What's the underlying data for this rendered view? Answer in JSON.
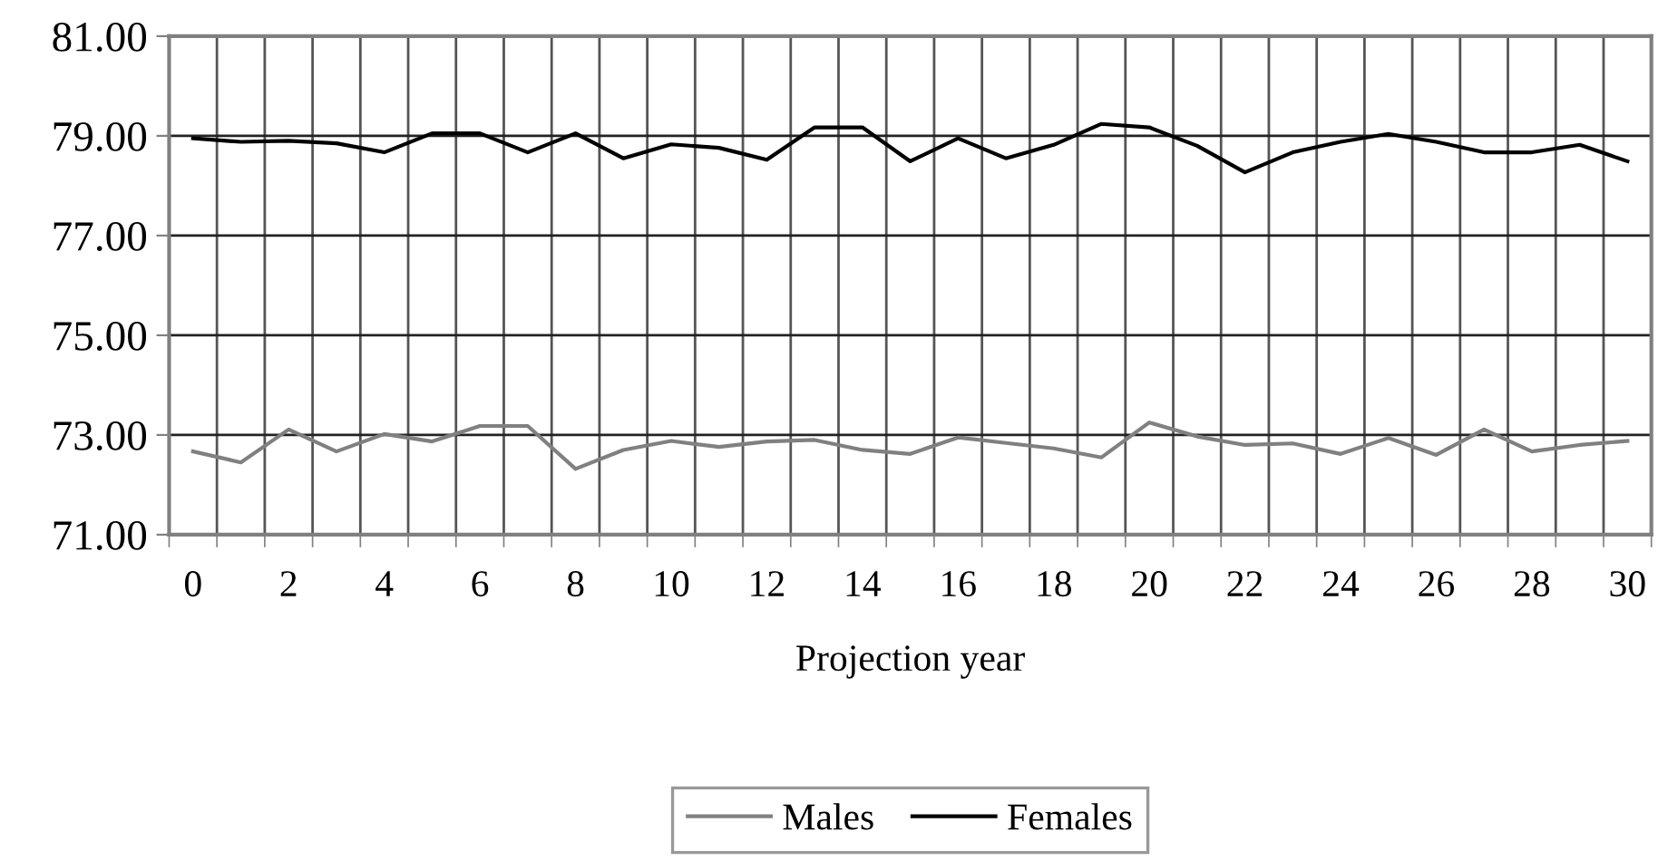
{
  "chart_data": {
    "type": "line",
    "xlabel": "Projection year",
    "categories": [
      "0",
      null,
      "2",
      null,
      "4",
      null,
      "6",
      null,
      "8",
      null,
      "10",
      null,
      "12",
      null,
      "14",
      null,
      "16",
      null,
      "18",
      null,
      "20",
      null,
      "22",
      null,
      "24",
      null,
      "26",
      null,
      "28",
      null,
      "30"
    ],
    "series": [
      {
        "name": "Males",
        "color": "#808080",
        "values": [
          72.67,
          72.45,
          73.11,
          72.67,
          73.02,
          72.87,
          73.18,
          73.18,
          72.32,
          72.7,
          72.88,
          72.76,
          72.87,
          72.9,
          72.7,
          72.62,
          72.95,
          72.84,
          72.73,
          72.55,
          73.25,
          72.97,
          72.8,
          72.83,
          72.62,
          72.94,
          72.6,
          73.11,
          72.67,
          72.8,
          72.88
        ]
      },
      {
        "name": "Females",
        "color": "#000000",
        "values": [
          78.95,
          78.88,
          78.9,
          78.85,
          78.67,
          79.05,
          79.05,
          78.67,
          79.05,
          78.55,
          78.83,
          78.76,
          78.52,
          79.17,
          79.17,
          78.49,
          78.95,
          78.55,
          78.82,
          79.24,
          79.17,
          78.8,
          78.27,
          78.67,
          78.88,
          79.04,
          78.88,
          78.67,
          78.67,
          78.82,
          78.49
        ]
      }
    ],
    "ylim": [
      71,
      81
    ],
    "yticks": [
      {
        "value": 71,
        "label": "71.00"
      },
      {
        "value": 73,
        "label": "73.00"
      },
      {
        "value": 75,
        "label": "75.00"
      },
      {
        "value": 77,
        "label": "77.00"
      },
      {
        "value": 79,
        "label": "79.00"
      },
      {
        "value": 81,
        "label": "81.00"
      }
    ],
    "grid": true,
    "legend": "bottom",
    "marker": "none",
    "line_style": "solid"
  }
}
